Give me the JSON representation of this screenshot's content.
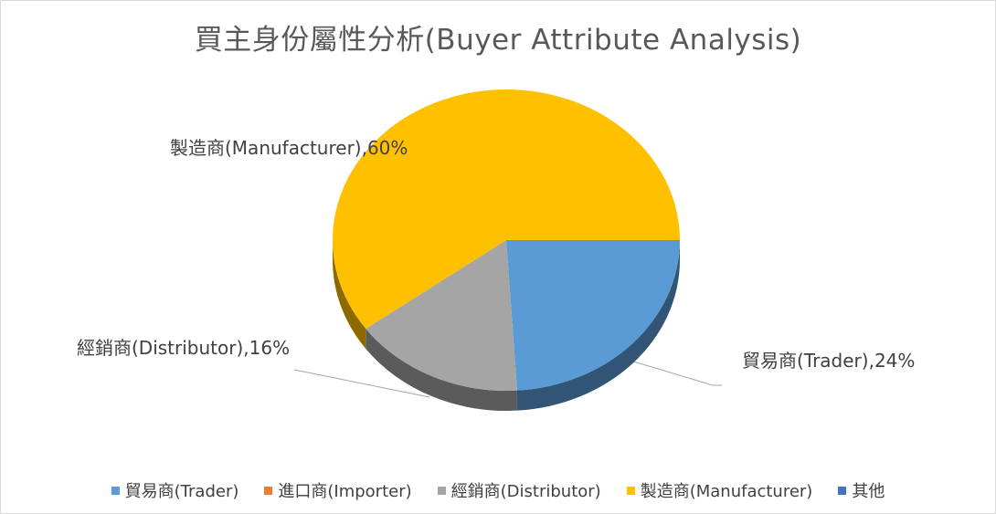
{
  "chart_data": {
    "type": "pie",
    "title": "買主身份屬性分析(Buyer Attribute Analysis)",
    "slices": [
      {
        "name": "貿易商(Trader)",
        "value": 24,
        "label": "貿易商(Trader),24%",
        "color": "#5b9bd5"
      },
      {
        "name": "進口商(Importer)",
        "value": 0,
        "label": "",
        "color": "#ed7d31"
      },
      {
        "name": "經銷商(Distributor)",
        "value": 16,
        "label": "經銷商(Distributor),16%",
        "color": "#a5a5a5"
      },
      {
        "name": "製造商(Manufacturer)",
        "value": 60,
        "label": "製造商(Manufacturer),60%",
        "color": "#ffc000"
      },
      {
        "name": "其他",
        "value": 0,
        "label": "",
        "color": "#4472c4"
      }
    ],
    "legend_position": "bottom",
    "style": "3d-pie"
  }
}
